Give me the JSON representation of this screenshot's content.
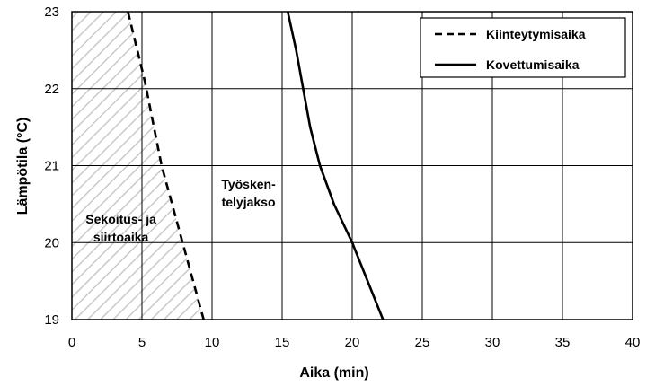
{
  "chart_data": {
    "type": "line",
    "xlabel": "Aika (min)",
    "ylabel": "Lämpötila (°C)",
    "xlim": [
      0,
      40
    ],
    "ylim": [
      19,
      23
    ],
    "xticks": [
      0,
      5,
      10,
      15,
      20,
      25,
      30,
      35,
      40
    ],
    "yticks": [
      19,
      20,
      21,
      22,
      23
    ],
    "grid": true,
    "legend_position": "top-right",
    "series": [
      {
        "name": "Kiinteytymisaika",
        "style": "dashed",
        "color": "#000000",
        "points": [
          [
            4.0,
            23.0
          ],
          [
            5.2,
            22.1
          ],
          [
            6.4,
            21.0
          ],
          [
            7.9,
            20.0
          ],
          [
            9.4,
            19.0
          ]
        ]
      },
      {
        "name": "Kovettumisaika",
        "style": "solid",
        "color": "#000000",
        "points": [
          [
            15.4,
            23.0
          ],
          [
            16.0,
            22.5
          ],
          [
            16.5,
            22.0
          ],
          [
            17.0,
            21.5
          ],
          [
            17.7,
            21.0
          ],
          [
            18.7,
            20.5
          ],
          [
            20.0,
            20.0
          ],
          [
            21.1,
            19.5
          ],
          [
            22.2,
            19.0
          ]
        ]
      }
    ],
    "annotations": [
      {
        "id": "mixing",
        "lines": [
          "Sekoitus- ja",
          "siirtoaika"
        ],
        "x": 3.5,
        "y": 20.25
      },
      {
        "id": "working",
        "lines": [
          "Työsken-",
          "telyjakso"
        ],
        "x": 12.6,
        "y": 20.7
      }
    ],
    "hatched_region": "area left of the Kiinteytymisaika curve"
  }
}
